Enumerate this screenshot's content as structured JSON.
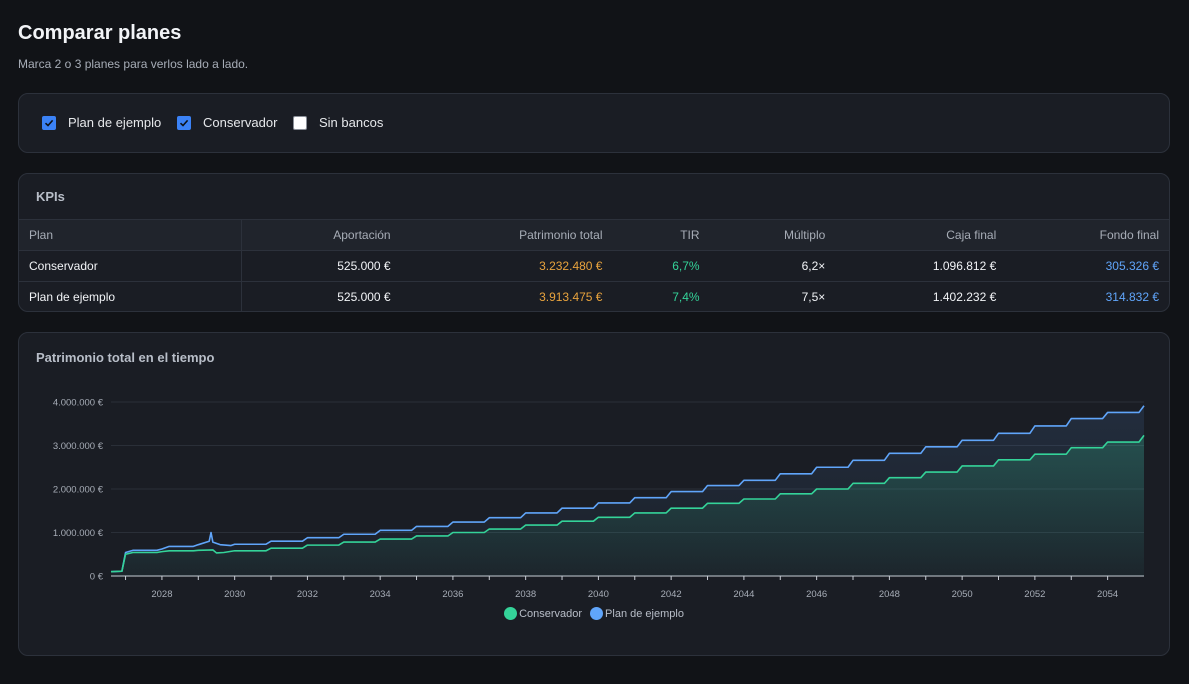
{
  "header": {
    "title": "Comparar planes",
    "subtitle": "Marca 2 o 3 planes para verlos lado a lado."
  },
  "plans": [
    {
      "label": "Plan de ejemplo",
      "checked": true
    },
    {
      "label": "Conservador",
      "checked": true
    },
    {
      "label": "Sin bancos",
      "checked": false
    }
  ],
  "kpis": {
    "title": "KPIs",
    "columns": [
      "Plan",
      "Aportación",
      "Patrimonio total",
      "TIR",
      "Múltiplo",
      "Caja final",
      "Fondo final"
    ],
    "rows": [
      {
        "plan": "Conservador",
        "aportacion": "525.000 €",
        "patrimonio": "3.232.480 €",
        "tir": "6,7%",
        "multiplo": "6,2×",
        "caja": "1.096.812 €",
        "fondo": "305.326 €"
      },
      {
        "plan": "Plan de ejemplo",
        "aportacion": "525.000 €",
        "patrimonio": "3.913.475 €",
        "tir": "7,4%",
        "multiplo": "7,5×",
        "caja": "1.402.232 €",
        "fondo": "314.832 €"
      }
    ]
  },
  "colors": {
    "accent": "#3b82f6",
    "conservador": "#34d399",
    "ejemplo": "#60a5fa",
    "patrimonio": "#e8a33d"
  },
  "chart": {
    "title": "Patrimonio total en el tiempo"
  },
  "chart_data": {
    "type": "line",
    "title": "Patrimonio total en el tiempo",
    "xlabel": "",
    "ylabel": "",
    "xlim": [
      2026.6,
      2055.0
    ],
    "ylim": [
      0,
      4000000
    ],
    "x_ticks": [
      "2028",
      "2030",
      "2032",
      "2034",
      "2036",
      "2038",
      "2040",
      "2042",
      "2044",
      "2046",
      "2048",
      "2050",
      "2052",
      "2054"
    ],
    "y_ticks": [
      "0 €",
      "1.000.000 €",
      "2.000.000 €",
      "3.000.000 €",
      "4.000.000 €"
    ],
    "grid": true,
    "legend": "bottom-center",
    "series": [
      {
        "name": "Conservador",
        "color": "#34d399",
        "area": true,
        "x": [
          2026.6,
          2026.9,
          2027.0,
          2027.2,
          2028.0,
          2028.2,
          2029.0,
          2029.4,
          2029.5,
          2029.7,
          2030.0,
          2031.0,
          2032.0,
          2033.0,
          2034.0,
          2035.0,
          2036.0,
          2037.0,
          2038.0,
          2039.0,
          2040.0,
          2041.0,
          2042.0,
          2043.0,
          2044.0,
          2045.0,
          2046.0,
          2047.0,
          2048.0,
          2049.0,
          2050.0,
          2051.0,
          2052.0,
          2053.0,
          2054.0,
          2055.0
        ],
        "y": [
          100000,
          110000,
          500000,
          540000,
          560000,
          580000,
          590000,
          600000,
          530000,
          540000,
          580000,
          640000,
          710000,
          780000,
          850000,
          920000,
          1000000,
          1080000,
          1170000,
          1260000,
          1350000,
          1450000,
          1560000,
          1670000,
          1770000,
          1890000,
          2000000,
          2130000,
          2260000,
          2390000,
          2530000,
          2670000,
          2800000,
          2950000,
          3080000,
          3232480
        ]
      },
      {
        "name": "Plan de ejemplo",
        "color": "#60a5fa",
        "area": true,
        "x": [
          2026.6,
          2026.9,
          2027.0,
          2027.2,
          2028.0,
          2028.2,
          2029.0,
          2029.3,
          2029.35,
          2029.4,
          2029.6,
          2029.9,
          2030.0,
          2031.0,
          2032.0,
          2033.0,
          2034.0,
          2035.0,
          2036.0,
          2037.0,
          2038.0,
          2039.0,
          2040.0,
          2041.0,
          2042.0,
          2043.0,
          2044.0,
          2045.0,
          2046.0,
          2047.0,
          2048.0,
          2049.0,
          2050.0,
          2051.0,
          2052.0,
          2053.0,
          2054.0,
          2055.0
        ],
        "y": [
          100000,
          110000,
          540000,
          590000,
          620000,
          680000,
          720000,
          800000,
          1000000,
          780000,
          720000,
          700000,
          730000,
          800000,
          880000,
          960000,
          1050000,
          1140000,
          1240000,
          1340000,
          1450000,
          1560000,
          1680000,
          1800000,
          1940000,
          2080000,
          2200000,
          2350000,
          2500000,
          2660000,
          2820000,
          2970000,
          3120000,
          3280000,
          3450000,
          3620000,
          3760000,
          3913475
        ]
      }
    ]
  }
}
